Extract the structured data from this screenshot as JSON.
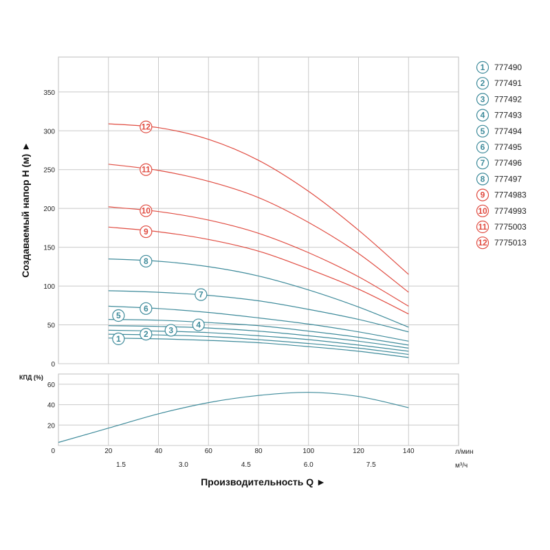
{
  "colors": {
    "blue": "#3d8a9a",
    "red": "#e04a3f",
    "grid": "#c8c8c8",
    "frame": "#bdbdbd"
  },
  "chart_data": [
    {
      "type": "line",
      "ylabel": "Создаваемый напор H (м) ►",
      "xlabel": "Производительность Q ►",
      "x_unit_primary": "л/мин",
      "x_unit_secondary": "м³/ч",
      "xlim": [
        0,
        160
      ],
      "ylim": [
        0,
        395
      ],
      "x_ticks": [
        "20",
        "40",
        "60",
        "80",
        "100",
        "120",
        "140"
      ],
      "x_ticks_secondary": [
        "1.5",
        "3.0",
        "4.5",
        "6.0",
        "7.5"
      ],
      "y_ticks": [
        "0",
        "50",
        "100",
        "150",
        "200",
        "250",
        "300",
        "350"
      ],
      "grid": true,
      "legend": "right",
      "series": [
        {
          "name": "777490",
          "label": "1",
          "color": "blue",
          "label_pos": [
            24,
            32
          ],
          "points": [
            [
              20,
              33
            ],
            [
              40,
              32
            ],
            [
              60,
              30
            ],
            [
              80,
              27
            ],
            [
              100,
              22
            ],
            [
              120,
              16
            ],
            [
              140,
              8
            ]
          ]
        },
        {
          "name": "777491",
          "label": "2",
          "color": "blue",
          "label_pos": [
            35,
            38
          ],
          "points": [
            [
              20,
              38
            ],
            [
              40,
              37
            ],
            [
              60,
              35
            ],
            [
              80,
              31
            ],
            [
              100,
              26
            ],
            [
              120,
              20
            ],
            [
              140,
              12
            ]
          ]
        },
        {
          "name": "777492",
          "label": "3",
          "color": "blue",
          "label_pos": [
            45,
            43
          ],
          "points": [
            [
              20,
              43
            ],
            [
              40,
              42
            ],
            [
              60,
              40
            ],
            [
              80,
              36
            ],
            [
              100,
              31
            ],
            [
              120,
              24
            ],
            [
              140,
              16
            ]
          ]
        },
        {
          "name": "777493",
          "label": "4",
          "color": "blue",
          "label_pos": [
            56,
            50
          ],
          "points": [
            [
              20,
              49
            ],
            [
              40,
              48
            ],
            [
              60,
              46
            ],
            [
              80,
              42
            ],
            [
              100,
              36
            ],
            [
              120,
              29
            ],
            [
              140,
              20
            ]
          ]
        },
        {
          "name": "777494",
          "label": "5",
          "color": "blue",
          "label_pos": [
            24,
            62
          ],
          "points": [
            [
              20,
              57
            ],
            [
              40,
              56
            ],
            [
              60,
              53
            ],
            [
              80,
              49
            ],
            [
              100,
              42
            ],
            [
              120,
              34
            ],
            [
              140,
              24
            ]
          ]
        },
        {
          "name": "777495",
          "label": "6",
          "color": "blue",
          "label_pos": [
            35,
            71
          ],
          "points": [
            [
              20,
              74
            ],
            [
              40,
              71
            ],
            [
              60,
              66
            ],
            [
              80,
              59
            ],
            [
              100,
              51
            ],
            [
              120,
              41
            ],
            [
              140,
              29
            ]
          ]
        },
        {
          "name": "777496",
          "label": "7",
          "color": "blue",
          "label_pos": [
            57,
            89
          ],
          "points": [
            [
              20,
              94
            ],
            [
              40,
              92
            ],
            [
              60,
              88
            ],
            [
              80,
              81
            ],
            [
              100,
              70
            ],
            [
              120,
              57
            ],
            [
              140,
              41
            ]
          ]
        },
        {
          "name": "777497",
          "label": "8",
          "color": "blue",
          "label_pos": [
            35,
            132
          ],
          "points": [
            [
              20,
              135
            ],
            [
              40,
              132
            ],
            [
              60,
              125
            ],
            [
              80,
              113
            ],
            [
              100,
              95
            ],
            [
              120,
              73
            ],
            [
              140,
              47
            ]
          ]
        },
        {
          "name": "7774983",
          "label": "9",
          "color": "red",
          "label_pos": [
            35,
            170
          ],
          "points": [
            [
              20,
              176
            ],
            [
              40,
              170
            ],
            [
              60,
              160
            ],
            [
              80,
              145
            ],
            [
              100,
              122
            ],
            [
              120,
              96
            ],
            [
              140,
              64
            ]
          ]
        },
        {
          "name": "7774993",
          "label": "10",
          "color": "red",
          "label_pos": [
            35,
            197
          ],
          "points": [
            [
              20,
              202
            ],
            [
              40,
              196
            ],
            [
              60,
              185
            ],
            [
              80,
              168
            ],
            [
              100,
              143
            ],
            [
              120,
              112
            ],
            [
              140,
              74
            ]
          ]
        },
        {
          "name": "7775003",
          "label": "11",
          "color": "red",
          "label_pos": [
            35,
            250
          ],
          "points": [
            [
              20,
              257
            ],
            [
              40,
              249
            ],
            [
              60,
              235
            ],
            [
              80,
              214
            ],
            [
              100,
              182
            ],
            [
              120,
              142
            ],
            [
              140,
              92
            ]
          ]
        },
        {
          "name": "7775013",
          "label": "12",
          "color": "red",
          "label_pos": [
            35,
            305
          ],
          "points": [
            [
              20,
              309
            ],
            [
              40,
              304
            ],
            [
              60,
              289
            ],
            [
              80,
              262
            ],
            [
              100,
              222
            ],
            [
              120,
              172
            ],
            [
              140,
              115
            ]
          ]
        }
      ]
    },
    {
      "type": "line",
      "ylabel": "КПД (%)",
      "xlim": [
        0,
        160
      ],
      "ylim": [
        0,
        70
      ],
      "y_ticks": [
        "0",
        "20",
        "40",
        "60"
      ],
      "grid": true,
      "series": [
        {
          "color": "blue",
          "points": [
            [
              0,
              3
            ],
            [
              20,
              17
            ],
            [
              40,
              31
            ],
            [
              60,
              42
            ],
            [
              80,
              49
            ],
            [
              100,
              52
            ],
            [
              120,
              48
            ],
            [
              140,
              37
            ]
          ]
        }
      ]
    }
  ]
}
